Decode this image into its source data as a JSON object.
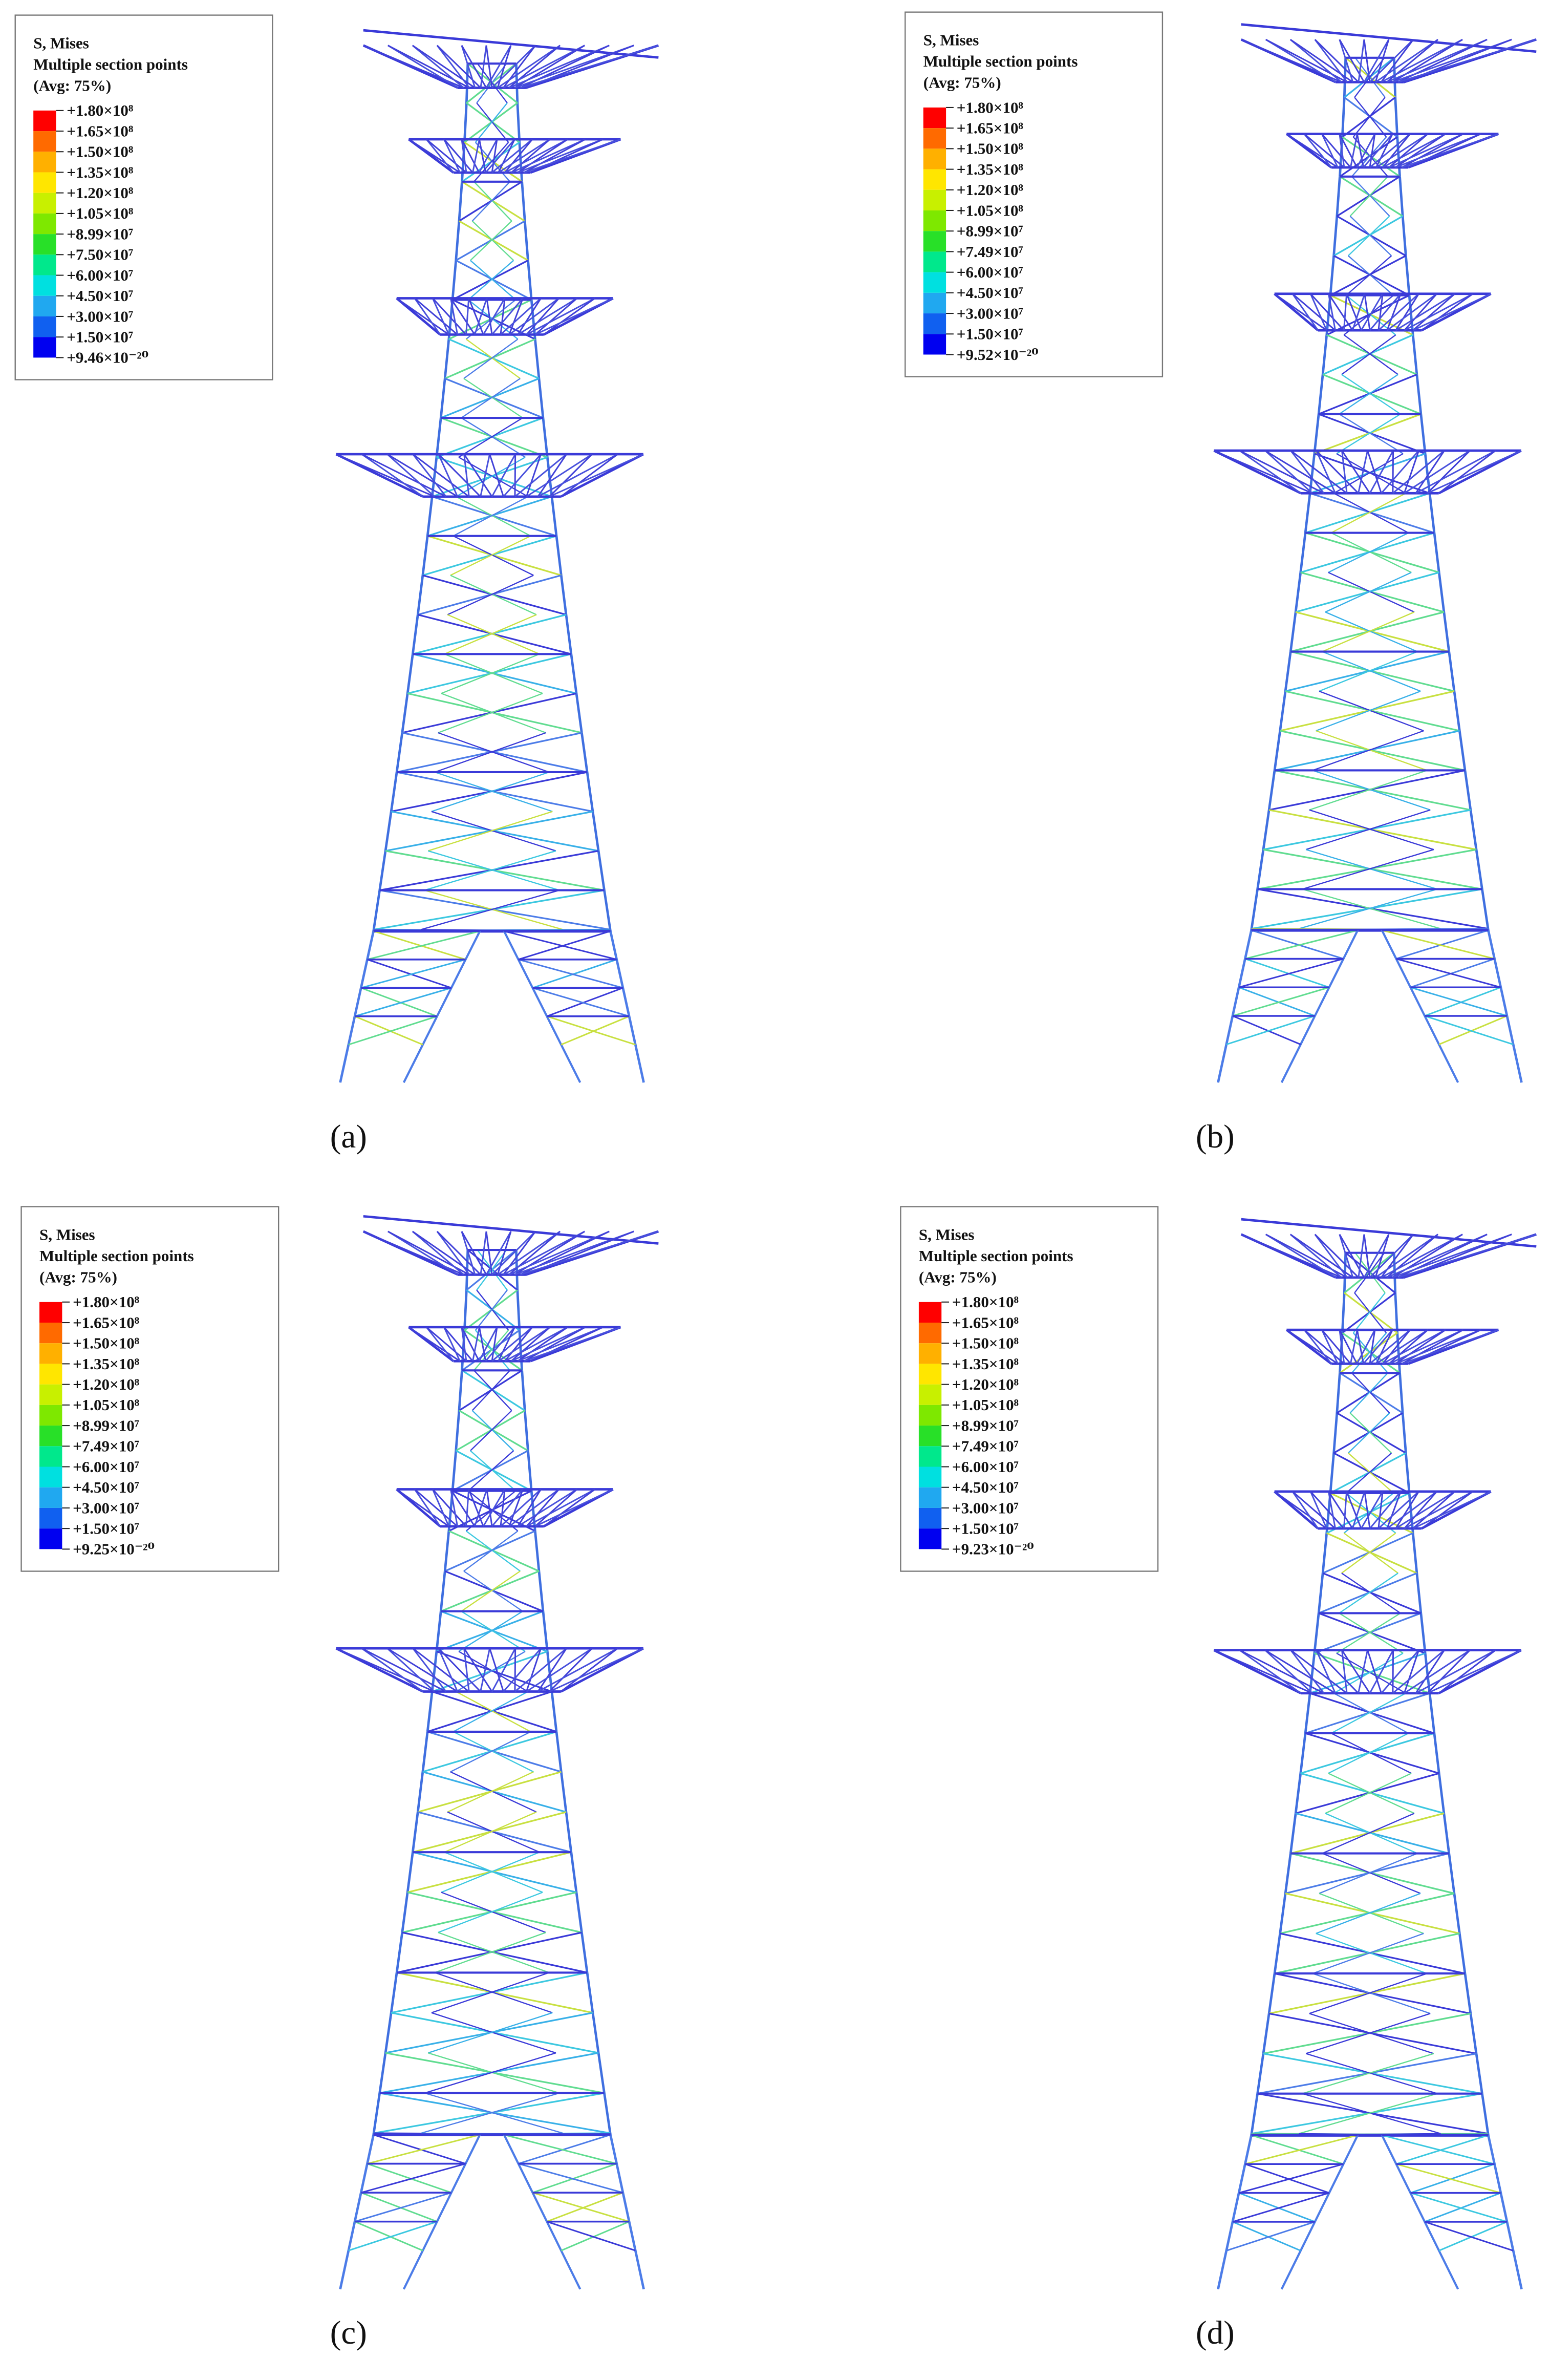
{
  "legend_colors": [
    "#ff0000",
    "#ff6a00",
    "#ffb000",
    "#ffe600",
    "#c8f000",
    "#7ee800",
    "#28e028",
    "#00e88c",
    "#00e0e0",
    "#20a8f0",
    "#1060f0",
    "#0000f0"
  ],
  "panels": [
    {
      "caption": "(a)",
      "legend": {
        "title": "S, Mises",
        "subtitle": "Multiple section points",
        "note": "(Avg: 75%)",
        "labels": [
          "+1.80×10⁸",
          "+1.65×10⁸",
          "+1.50×10⁸",
          "+1.35×10⁸",
          "+1.20×10⁸",
          "+1.05×10⁸",
          "+8.99×10⁷",
          "+7.50×10⁷",
          "+6.00×10⁷",
          "+4.50×10⁷",
          "+3.00×10⁷",
          "+1.50×10⁷",
          "+9.46×10⁻²⁰"
        ]
      }
    },
    {
      "caption": "(b)",
      "legend": {
        "title": "S, Mises",
        "subtitle": "Multiple section points",
        "note": "(Avg: 75%)",
        "labels": [
          "+1.80×10⁸",
          "+1.65×10⁸",
          "+1.50×10⁸",
          "+1.35×10⁸",
          "+1.20×10⁸",
          "+1.05×10⁸",
          "+8.99×10⁷",
          "+7.49×10⁷",
          "+6.00×10⁷",
          "+4.50×10⁷",
          "+3.00×10⁷",
          "+1.50×10⁷",
          "+9.52×10⁻²⁰"
        ]
      }
    },
    {
      "caption": "(c)",
      "legend": {
        "title": "S, Mises",
        "subtitle": "Multiple section points",
        "note": "(Avg: 75%)",
        "labels": [
          "+1.80×10⁸",
          "+1.65×10⁸",
          "+1.50×10⁸",
          "+1.35×10⁸",
          "+1.20×10⁸",
          "+1.05×10⁸",
          "+8.99×10⁷",
          "+7.49×10⁷",
          "+6.00×10⁷",
          "+4.50×10⁷",
          "+3.00×10⁷",
          "+1.50×10⁷",
          "+9.25×10⁻²⁰"
        ]
      }
    },
    {
      "caption": "(d)",
      "legend": {
        "title": "S, Mises",
        "subtitle": "Multiple section points",
        "note": "(Avg: 75%)",
        "labels": [
          "+1.80×10⁸",
          "+1.65×10⁸",
          "+1.50×10⁸",
          "+1.35×10⁸",
          "+1.20×10⁸",
          "+1.05×10⁸",
          "+8.99×10⁷",
          "+7.49×10⁷",
          "+6.00×10⁷",
          "+4.50×10⁷",
          "+3.00×10⁷",
          "+1.50×10⁷",
          "+9.23×10⁻²⁰"
        ]
      }
    }
  ]
}
